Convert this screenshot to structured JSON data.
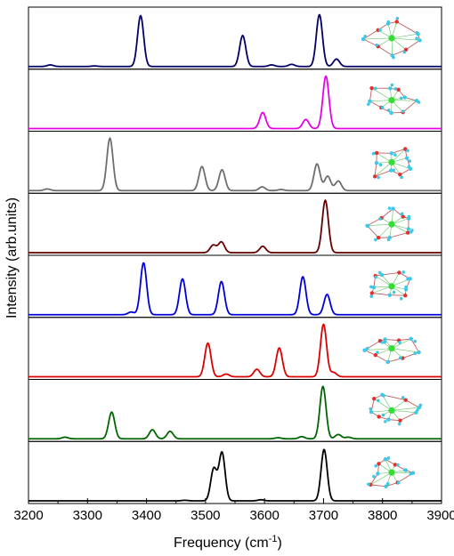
{
  "chart_data": {
    "type": "line",
    "layout": "stacked-panels",
    "xlabel": "Frequency (cm",
    "xlabel_sup": "-1",
    "xlabel_end": ")",
    "ylabel": "Intensity (arb.units)",
    "xlim": [
      3200,
      3900
    ],
    "xticks": [
      3200,
      3300,
      3400,
      3500,
      3600,
      3700,
      3800,
      3900
    ],
    "grid": false,
    "legend": "none",
    "panels": [
      {
        "color": "#000066",
        "peaks": [
          [
            3237,
            0.03
          ],
          [
            3312,
            0.01
          ],
          [
            3390,
            0.95
          ],
          [
            3563,
            0.58
          ],
          [
            3612,
            0.03
          ],
          [
            3646,
            0.04
          ],
          [
            3693,
            0.97
          ],
          [
            3722,
            0.14
          ]
        ]
      },
      {
        "color": "#e600e6",
        "peaks": [
          [
            3597,
            0.3
          ],
          [
            3670,
            0.17
          ],
          [
            3704,
            0.98
          ]
        ]
      },
      {
        "color": "#6e6e6e",
        "peaks": [
          [
            3232,
            0.03
          ],
          [
            3338,
            0.98
          ],
          [
            3494,
            0.45
          ],
          [
            3528,
            0.39
          ],
          [
            3596,
            0.07
          ],
          [
            3628,
            0.02
          ],
          [
            3689,
            0.5
          ],
          [
            3707,
            0.27
          ],
          [
            3725,
            0.18
          ]
        ]
      },
      {
        "color": "#660000",
        "peaks": [
          [
            3513,
            0.14
          ],
          [
            3527,
            0.2
          ],
          [
            3597,
            0.12
          ],
          [
            3703,
            0.98
          ]
        ]
      },
      {
        "color": "#0000dd",
        "peaks": [
          [
            3374,
            0.05
          ],
          [
            3395,
            0.97
          ],
          [
            3461,
            0.67
          ],
          [
            3527,
            0.62
          ],
          [
            3665,
            0.71
          ],
          [
            3706,
            0.38
          ]
        ]
      },
      {
        "color": "#dd0000",
        "peaks": [
          [
            3504,
            0.63
          ],
          [
            3535,
            0.05
          ],
          [
            3587,
            0.14
          ],
          [
            3625,
            0.54
          ],
          [
            3700,
            0.98
          ],
          [
            3717,
            0.08
          ]
        ]
      },
      {
        "color": "#006600",
        "peaks": [
          [
            3262,
            0.03
          ],
          [
            3341,
            0.5
          ],
          [
            3410,
            0.17
          ],
          [
            3440,
            0.14
          ],
          [
            3623,
            0.02
          ],
          [
            3663,
            0.04
          ],
          [
            3699,
            0.98
          ],
          [
            3725,
            0.08
          ],
          [
            3742,
            0.03
          ]
        ]
      },
      {
        "color": "#000000",
        "peaks": [
          [
            3465,
            0.01
          ],
          [
            3514,
            0.6
          ],
          [
            3528,
            0.9
          ],
          [
            3594,
            0.02
          ],
          [
            3701,
            0.96
          ]
        ]
      }
    ]
  },
  "molecules": [
    {
      "name": "panel-1-structure-icon"
    },
    {
      "name": "panel-2-structure-icon"
    },
    {
      "name": "panel-3-structure-icon"
    },
    {
      "name": "panel-4-structure-icon"
    },
    {
      "name": "panel-5-structure-icon"
    },
    {
      "name": "panel-6-structure-icon"
    },
    {
      "name": "panel-7-structure-icon"
    },
    {
      "name": "panel-8-structure-icon"
    }
  ]
}
